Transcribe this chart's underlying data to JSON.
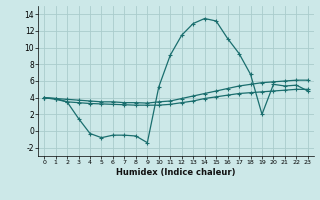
{
  "xlabel": "Humidex (Indice chaleur)",
  "background_color": "#cce8e8",
  "grid_color": "#aacccc",
  "line_color": "#1a6e6e",
  "xlim": [
    -0.5,
    23.5
  ],
  "ylim": [
    -3.0,
    15.0
  ],
  "xticks": [
    0,
    1,
    2,
    3,
    4,
    5,
    6,
    7,
    8,
    9,
    10,
    11,
    12,
    13,
    14,
    15,
    16,
    17,
    18,
    19,
    20,
    21,
    22,
    23
  ],
  "yticks": [
    -2,
    0,
    2,
    4,
    6,
    8,
    10,
    12,
    14
  ],
  "line1_x": [
    0,
    1,
    2,
    3,
    4,
    5,
    6,
    7,
    8,
    9,
    10,
    11,
    12,
    13,
    14,
    15,
    16,
    17,
    18,
    19,
    20,
    21,
    22,
    23
  ],
  "line1_y": [
    4.0,
    3.9,
    3.5,
    3.4,
    3.3,
    3.25,
    3.2,
    3.15,
    3.1,
    3.1,
    3.1,
    3.2,
    3.4,
    3.6,
    3.9,
    4.1,
    4.3,
    4.5,
    4.6,
    4.7,
    4.8,
    4.9,
    5.0,
    5.0
  ],
  "line2_x": [
    0,
    1,
    2,
    3,
    4,
    5,
    6,
    7,
    8,
    9,
    10,
    11,
    12,
    13,
    14,
    15,
    16,
    17,
    18,
    19,
    20,
    21,
    22,
    23
  ],
  "line2_y": [
    4.0,
    3.9,
    3.8,
    3.7,
    3.6,
    3.5,
    3.5,
    3.4,
    3.4,
    3.35,
    3.5,
    3.6,
    3.9,
    4.2,
    4.5,
    4.8,
    5.1,
    5.4,
    5.6,
    5.8,
    5.9,
    6.0,
    6.1,
    6.1
  ],
  "line3_x": [
    0,
    1,
    2,
    3,
    4,
    5,
    6,
    7,
    8,
    9,
    10,
    11,
    12,
    13,
    14,
    15,
    16,
    17,
    18,
    19,
    20,
    21,
    22,
    23
  ],
  "line3_y": [
    4.0,
    3.8,
    3.5,
    1.5,
    -0.3,
    -0.8,
    -0.5,
    -0.5,
    -0.6,
    -1.4,
    5.3,
    9.1,
    11.5,
    12.9,
    13.5,
    13.2,
    11.1,
    9.3,
    6.8,
    2.0,
    5.6,
    5.4,
    5.5,
    4.8
  ],
  "marker": "+"
}
